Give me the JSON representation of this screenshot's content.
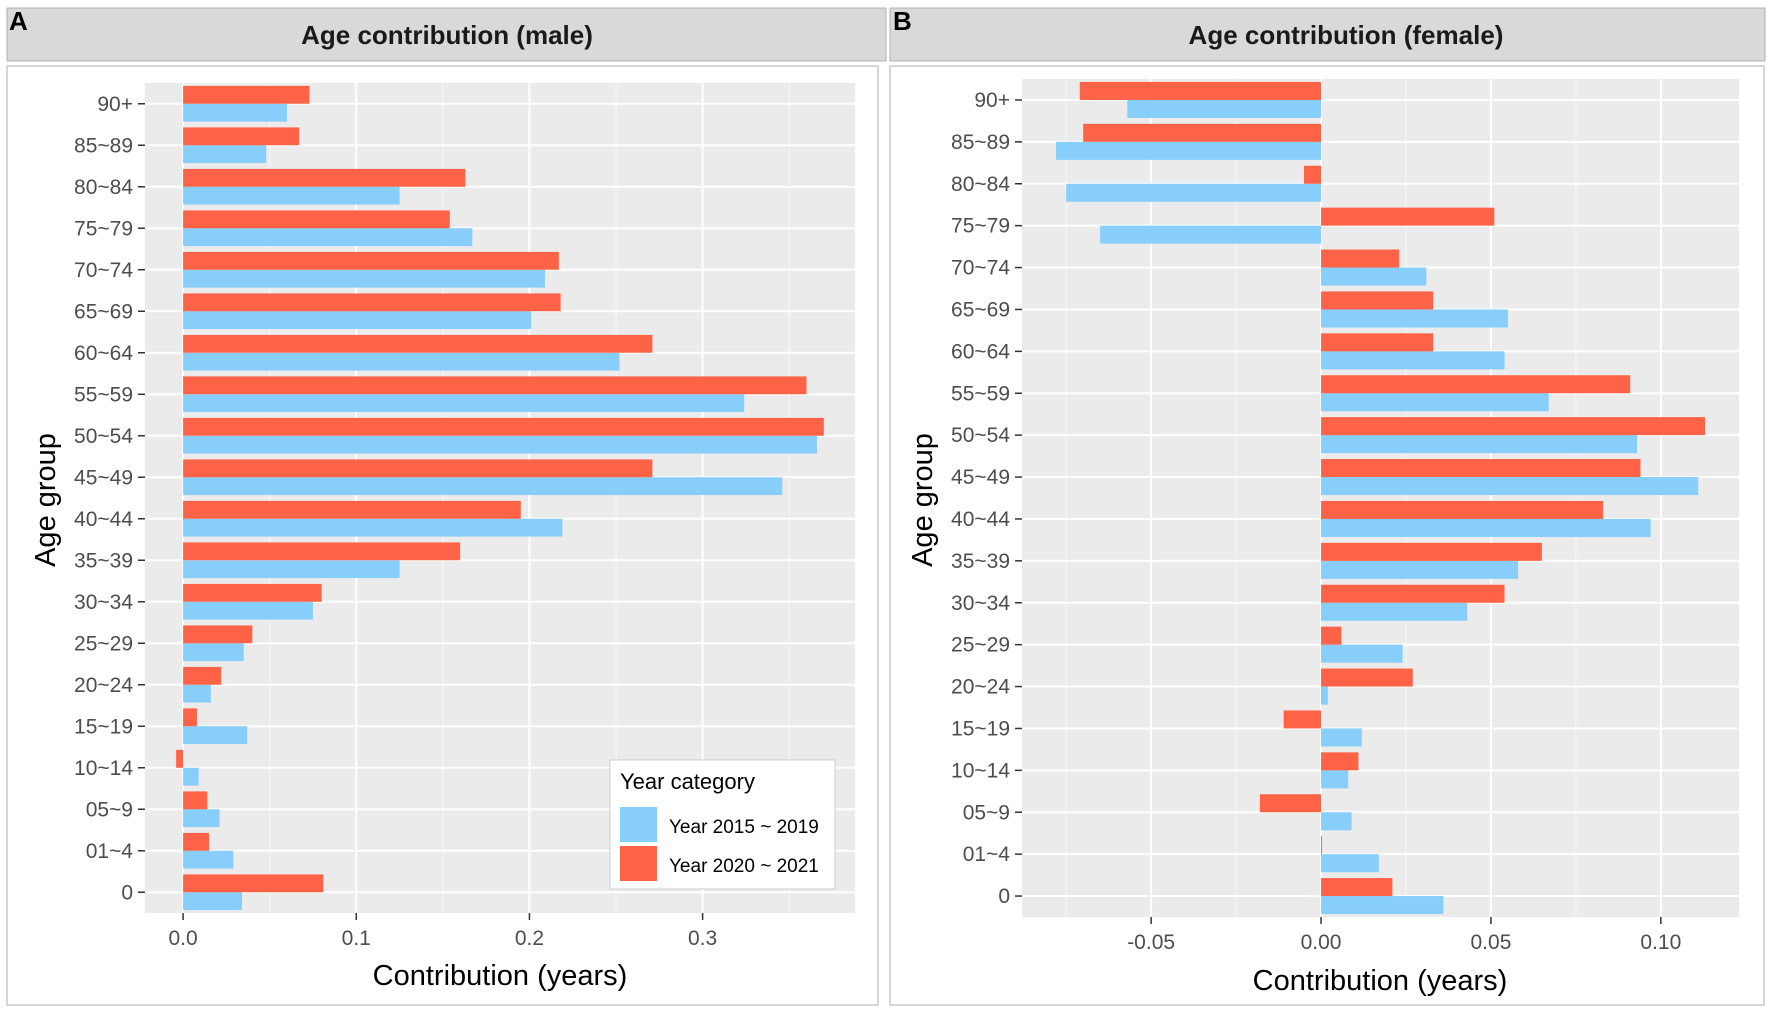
{
  "figure": {
    "legend": {
      "title": "Year category",
      "items": [
        {
          "label": "Year 2015 ~ 2019",
          "color": "#87CEFA"
        },
        {
          "label": "Year 2020 ~ 2021",
          "color": "#FF6347"
        }
      ]
    }
  },
  "chart_data": [
    {
      "type": "bar",
      "orientation": "horizontal",
      "panel_label": "A",
      "title": "Age contribution  (male)",
      "xlabel": "Contribution (years)",
      "ylabel": "Age group",
      "xlim": [
        -0.022,
        0.388
      ],
      "xticks": [
        0.0,
        0.1,
        0.2,
        0.3
      ],
      "xtick_labels": [
        "0.0",
        "0.1",
        "0.2",
        "0.3"
      ],
      "grid": true,
      "legend_position": "bottom-right",
      "categories": [
        "0",
        "01~4",
        "05~9",
        "10~14",
        "15~19",
        "20~24",
        "25~29",
        "30~34",
        "35~39",
        "40~44",
        "45~49",
        "50~54",
        "55~59",
        "60~64",
        "65~69",
        "70~74",
        "75~79",
        "80~84",
        "85~89",
        "90+"
      ],
      "series": [
        {
          "name": "Year 2015 ~ 2019",
          "color": "#87CEFA",
          "values": [
            0.034,
            0.029,
            0.021,
            0.009,
            0.037,
            0.016,
            0.035,
            0.075,
            0.125,
            0.219,
            0.346,
            0.366,
            0.324,
            0.252,
            0.201,
            0.209,
            0.167,
            0.125,
            0.048,
            0.06
          ]
        },
        {
          "name": "Year 2020 ~ 2021",
          "color": "#FF6347",
          "values": [
            0.081,
            0.015,
            0.014,
            -0.004,
            0.008,
            0.022,
            0.04,
            0.08,
            0.16,
            0.195,
            0.271,
            0.37,
            0.36,
            0.271,
            0.218,
            0.217,
            0.154,
            0.163,
            0.067,
            0.073
          ]
        }
      ]
    },
    {
      "type": "bar",
      "orientation": "horizontal",
      "panel_label": "B",
      "title": "Age contribution  (female)",
      "xlabel": "Contribution (years)",
      "ylabel": "Age group",
      "xlim": [
        -0.088,
        0.123
      ],
      "xticks": [
        -0.05,
        0.0,
        0.05,
        0.1
      ],
      "xtick_labels": [
        "-0.05",
        "0.00",
        "0.05",
        "0.10"
      ],
      "grid": true,
      "categories": [
        "0",
        "01~4",
        "05~9",
        "10~14",
        "15~19",
        "20~24",
        "25~29",
        "30~34",
        "35~39",
        "40~44",
        "45~49",
        "50~54",
        "55~59",
        "60~64",
        "65~69",
        "70~74",
        "75~79",
        "80~84",
        "85~89",
        "90+"
      ],
      "series": [
        {
          "name": "Year 2015 ~ 2019",
          "color": "#87CEFA",
          "values": [
            0.036,
            0.017,
            0.009,
            0.008,
            0.012,
            0.002,
            0.024,
            0.043,
            0.058,
            0.097,
            0.111,
            0.093,
            0.067,
            0.054,
            0.055,
            0.031,
            -0.065,
            -0.075,
            -0.078,
            -0.057
          ]
        },
        {
          "name": "Year 2020 ~ 2021",
          "color": "#FF6347",
          "values": [
            0.021,
            0.0003,
            -0.018,
            0.011,
            -0.011,
            0.027,
            0.006,
            0.054,
            0.065,
            0.083,
            0.094,
            0.113,
            0.091,
            0.033,
            0.033,
            0.023,
            0.051,
            -0.005,
            -0.07,
            -0.071
          ]
        }
      ]
    }
  ]
}
